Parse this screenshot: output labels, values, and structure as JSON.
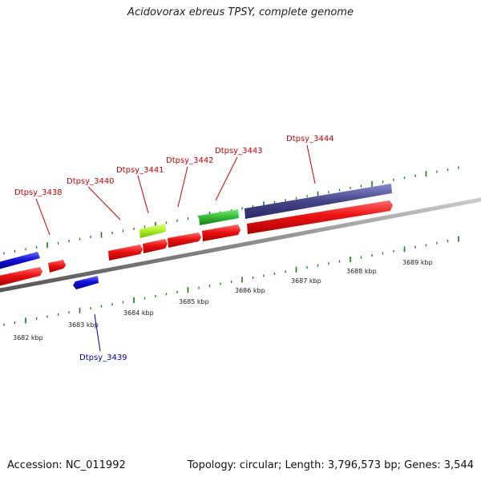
{
  "title": "Acidovorax ebreus TPSY, complete genome",
  "footer": {
    "accession": "Accession: NC_011992",
    "summary": "Topology: circular; Length: 3,796,573 bp; Genes: 3,544"
  },
  "colors": {
    "forward_cds": "#ee1111",
    "reverse_cds": "#1111dd",
    "rna_light_green": "#aaee22",
    "rna_green": "#33bb33",
    "long_feature": "#444488",
    "backbone": "#888888",
    "tick": "#1a7a1a",
    "forward_label": "#cc0000",
    "reverse_label": "#0000bb"
  },
  "scale_labels": [
    "3682 kbp",
    "3683 kbp",
    "3684 kbp",
    "3685 kbp",
    "3686 kbp",
    "3687 kbp",
    "3688 kbp",
    "3689 kbp"
  ],
  "gene_labels": [
    {
      "name": "Dtpsy_3438",
      "strand": "forward"
    },
    {
      "name": "Dtpsy_3439",
      "strand": "reverse"
    },
    {
      "name": "Dtpsy_3440",
      "strand": "forward"
    },
    {
      "name": "Dtpsy_3441",
      "strand": "forward"
    },
    {
      "name": "Dtpsy_3442",
      "strand": "forward"
    },
    {
      "name": "Dtpsy_3443",
      "strand": "forward"
    },
    {
      "name": "Dtpsy_3444",
      "strand": "forward"
    }
  ]
}
